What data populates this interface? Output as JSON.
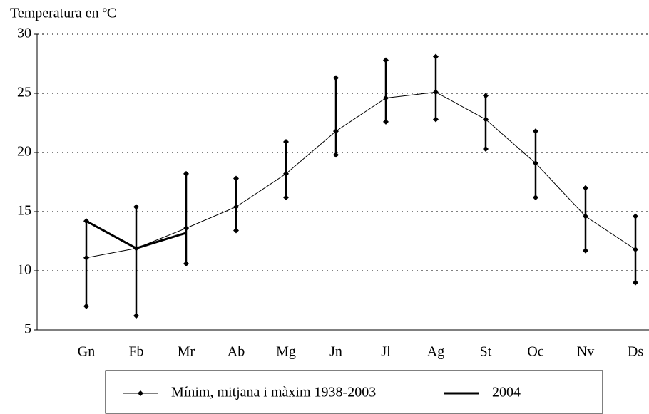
{
  "chart_data": {
    "type": "line",
    "ylabel": "Temperatura en ºC",
    "categories": [
      "Gn",
      "Fb",
      "Mr",
      "Ab",
      "Mg",
      "Jn",
      "Jl",
      "Ag",
      "St",
      "Oc",
      "Nv",
      "Ds"
    ],
    "series": [
      {
        "name": "Mínim, mitjana i màxim 1938-2003",
        "color": "#000000",
        "values": [
          11.1,
          11.9,
          13.6,
          15.4,
          18.2,
          21.8,
          24.6,
          25.1,
          22.8,
          19.1,
          14.6,
          11.8
        ],
        "low": [
          7.0,
          6.2,
          10.6,
          13.4,
          16.2,
          19.8,
          22.6,
          22.8,
          20.3,
          16.2,
          11.7,
          9.0
        ],
        "high": [
          14.2,
          15.4,
          18.2,
          17.8,
          20.9,
          26.3,
          27.8,
          28.1,
          24.8,
          21.8,
          17.0,
          14.6
        ]
      },
      {
        "name": "2004",
        "color": "#000000",
        "values": [
          14.2,
          11.9,
          13.2,
          null,
          null,
          null,
          null,
          null,
          null,
          null,
          null,
          null
        ]
      }
    ],
    "ylim": [
      5,
      30
    ],
    "yticks": [
      5,
      10,
      15,
      20,
      25,
      30
    ],
    "grid": true
  }
}
